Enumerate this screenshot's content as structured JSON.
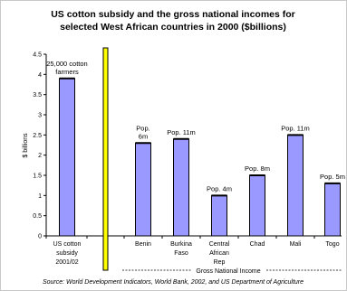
{
  "chart_data": {
    "type": "bar",
    "title": [
      "US cotton subsidy and the gross national incomes for",
      "selected West African countries  in 2000 ($billions)"
    ],
    "ylabel": "$ billions",
    "xlabel": "",
    "ylim": [
      0,
      4.5
    ],
    "yticks": [
      "0",
      "0.5",
      "1",
      "1.5",
      "2",
      "2.5",
      "3",
      "3.5",
      "4",
      "4.5"
    ],
    "grid": false,
    "categories": [
      [
        "US cotton",
        "subsidy",
        "2001/02"
      ],
      [
        "Benin"
      ],
      [
        "Burkina",
        "Faso"
      ],
      [
        "Central",
        "African",
        "Rep"
      ],
      [
        "Chad"
      ],
      [
        "Mali"
      ],
      [
        "Togo"
      ]
    ],
    "values": [
      3.9,
      2.3,
      2.4,
      1.0,
      1.5,
      2.5,
      1.3
    ],
    "annotations": [
      [
        "25,000 cotton",
        "farmers"
      ],
      [
        "Pop.",
        "6m"
      ],
      [
        "Pop. 11m"
      ],
      [
        "Pop. 4m"
      ],
      [
        "Pop. 8m"
      ],
      [
        "Pop. 11m"
      ],
      [
        "Pop. 5m"
      ]
    ],
    "group_label": "Gross National Income",
    "source": "Source: World Development Indicators, World Bank, 2002, and US Department of Agriculture",
    "colors": {
      "bar": "#9999ff",
      "bar_outline": "#000000",
      "separator": "#ffff00"
    }
  }
}
